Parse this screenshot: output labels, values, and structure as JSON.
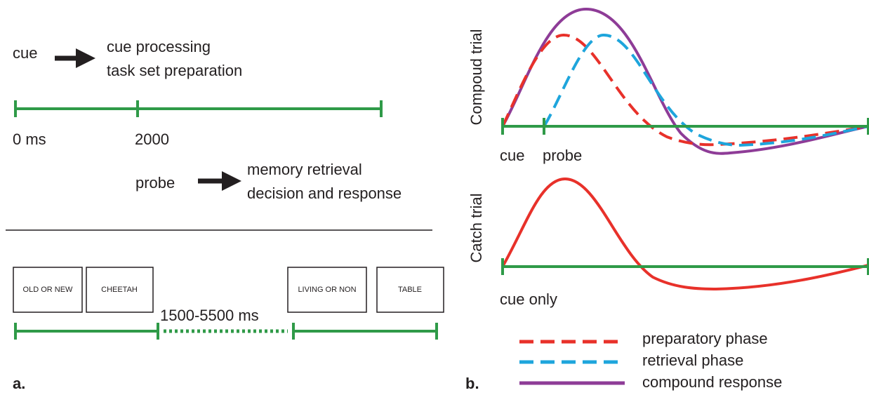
{
  "panel_a": {
    "label": "a.",
    "cue_stage": {
      "stimulus": "cue",
      "processes": [
        "cue processing",
        "task set preparation"
      ]
    },
    "timeline_labels": [
      "0 ms",
      "2000"
    ],
    "probe_stage": {
      "stimulus": "probe",
      "processes": [
        "memory retrieval",
        "decision and response"
      ]
    },
    "screens": [
      "OLD OR NEW",
      "CHEETAH",
      "LIVING OR NON",
      "TABLE"
    ],
    "interval": "1500-5500 ms"
  },
  "panel_b": {
    "label": "b.",
    "compound": {
      "title": "Compoud trial",
      "labels": [
        "cue",
        "probe"
      ]
    },
    "catch": {
      "title": "Catch trial",
      "labels": [
        "cue only"
      ]
    },
    "legend": [
      "preparatory phase",
      "retrieval phase",
      "compound response"
    ]
  }
}
